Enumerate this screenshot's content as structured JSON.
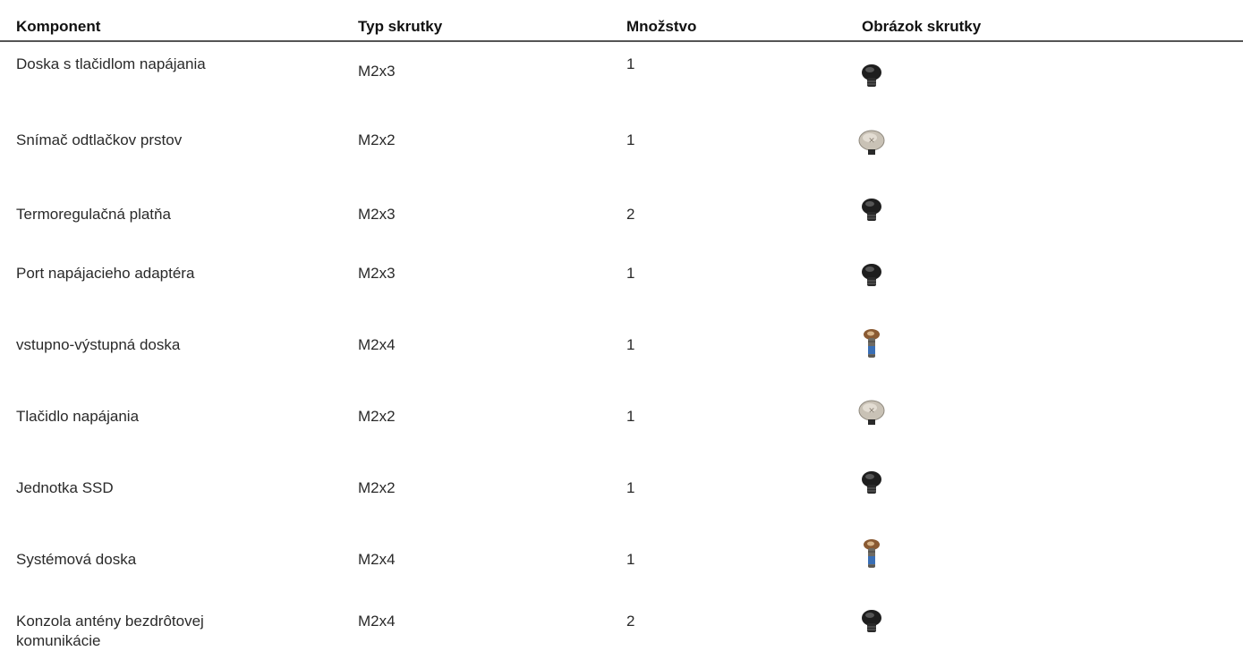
{
  "table": {
    "headers": [
      "Komponent",
      "Typ skrutky",
      "Množstvo",
      "Obrázok skrutky"
    ],
    "rows": [
      [
        "Doska s tlačidlom napájania",
        "M2x3",
        1
      ],
      [
        "Snímač odtlačkov prstov",
        "M2x2",
        1
      ],
      [
        "Termoregulačná platňa",
        "M2x3",
        2
      ],
      [
        "Port napájacieho adaptéra",
        "M2x3",
        1
      ],
      [
        "vstupno-výstupná doska",
        "M2x4",
        1
      ],
      [
        "Tlačidlo napájania",
        "M2x2",
        1
      ],
      [
        "Jednotka SSD",
        "M2x2",
        1
      ],
      [
        "Systémová doska",
        "M2x4",
        1
      ],
      [
        "Konzola antény bezdrôtovej komunikácie",
        "M2x4",
        2
      ]
    ]
  }
}
